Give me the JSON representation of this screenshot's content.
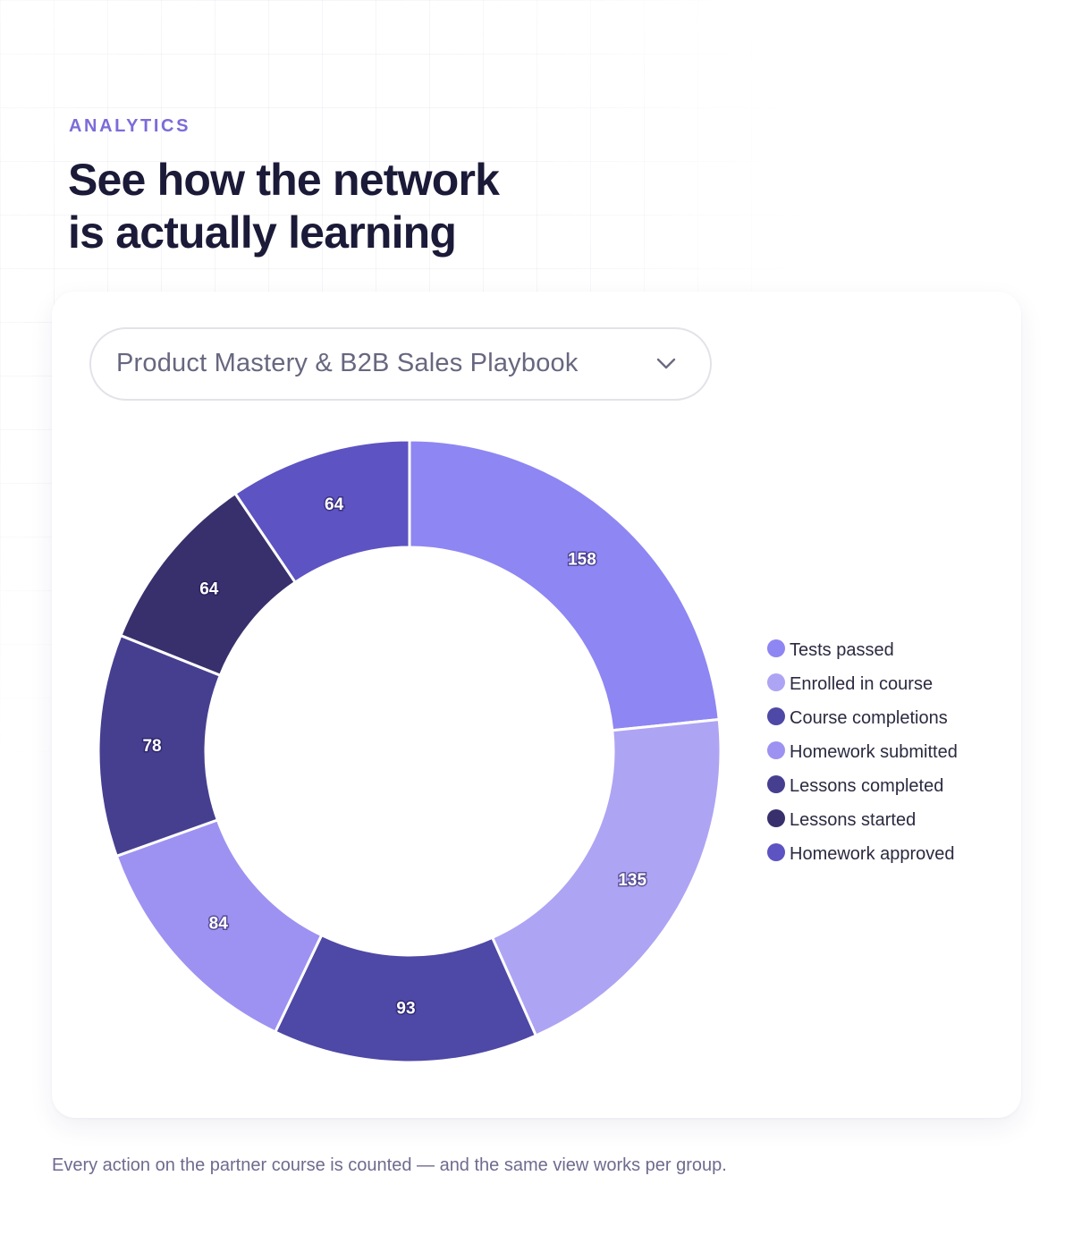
{
  "header": {
    "eyebrow": "ANALYTICS",
    "title_line1": "See how the network",
    "title_line2": "is actually learning"
  },
  "course_select": {
    "value": "Product Mastery & B2B Sales Playbook",
    "icon": "chevron-down-icon"
  },
  "chart_data": {
    "type": "pie",
    "donut": true,
    "categories": [
      "Tests passed",
      "Enrolled in course",
      "Course completions",
      "Homework submitted",
      "Lessons completed",
      "Lessons started",
      "Homework approved"
    ],
    "values": [
      158,
      135,
      93,
      84,
      78,
      64,
      64
    ],
    "colors": [
      "#8e86f3",
      "#aea4f4",
      "#4e48a6",
      "#9d92f2",
      "#463f90",
      "#37306c",
      "#5d53c2"
    ],
    "legend_position": "right"
  },
  "footnote": "Every action on the partner course is counted — and the same view works per group."
}
